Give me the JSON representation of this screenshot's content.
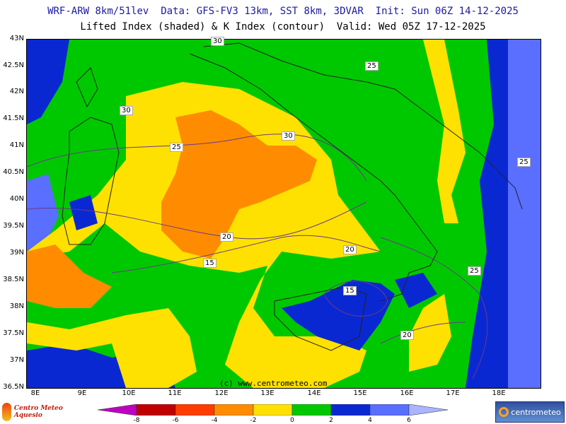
{
  "header": {
    "line1": "WRF-ARW 8km/51lev  Data: GFS-FV3 13km, SST 8km, 3DVAR  Init: Sun 06Z 14-12-2025",
    "line2": "Lifted Index (shaded) & K Index (contour)  Valid: Wed 05Z 17-12-2025"
  },
  "axes": {
    "lat_labels": [
      "43N",
      "42.5N",
      "42N",
      "41.5N",
      "41N",
      "40.5N",
      "40N",
      "39.5N",
      "39N",
      "38.5N",
      "38N",
      "37.5N",
      "37N",
      "36.5N"
    ],
    "lon_labels": [
      "8E",
      "9E",
      "10E",
      "11E",
      "12E",
      "13E",
      "14E",
      "15E",
      "16E",
      "17E",
      "18E"
    ]
  },
  "contour_labels": [
    "30",
    "25",
    "30",
    "25",
    "30",
    "25",
    "20",
    "15",
    "20",
    "15",
    "25",
    "20"
  ],
  "watermark": "(c) www.centrometeo.com",
  "colorbar": {
    "ticks": [
      "-8",
      "-6",
      "-4",
      "-2",
      "0",
      "2",
      "4",
      "6"
    ],
    "colors": [
      "#c000c0",
      "#c00000",
      "#ff3c00",
      "#ff8c00",
      "#ffe100",
      "#00c800",
      "#0a28d2",
      "#5a6eff",
      "#aab4ff"
    ]
  },
  "logos": {
    "left": "Centro Meteo Aquesio",
    "right": "centrometeo"
  }
}
